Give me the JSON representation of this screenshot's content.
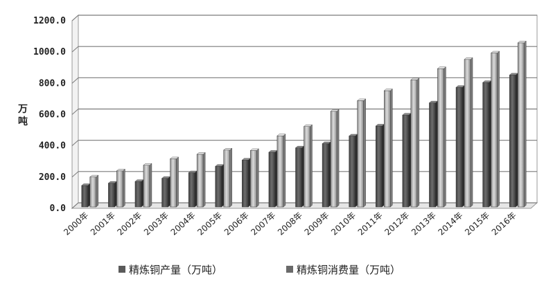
{
  "chart_data": {
    "type": "bar",
    "title": "",
    "xlabel": "",
    "ylabel": "万吨",
    "ylim": [
      0,
      1200
    ],
    "yticks": [
      "0.0",
      "200.0",
      "400.0",
      "600.0",
      "800.0",
      "1000.0",
      "1200.0"
    ],
    "grid": true,
    "legend_position": "bottom",
    "categories": [
      "2000年",
      "2001年",
      "2002年",
      "2003年",
      "2004年",
      "2005年",
      "2006年",
      "2007年",
      "2008年",
      "2009年",
      "2010年",
      "2011年",
      "2012年",
      "2013年",
      "2014年",
      "2015年",
      "2016年"
    ],
    "series": [
      {
        "name": "精炼铜产量（万吨）",
        "color": "#5a5a5a",
        "values": [
          137,
          152,
          163,
          183,
          219,
          260,
          300,
          350,
          378,
          405,
          454,
          518,
          588,
          666,
          765,
          796,
          844
        ]
      },
      {
        "name": "精炼铜消费量（万吨）",
        "color": "#b4b4b4",
        "values": [
          192,
          231,
          267,
          308,
          337,
          364,
          361,
          455,
          515,
          612,
          680,
          744,
          813,
          885,
          944,
          985,
          1050
        ]
      }
    ]
  }
}
